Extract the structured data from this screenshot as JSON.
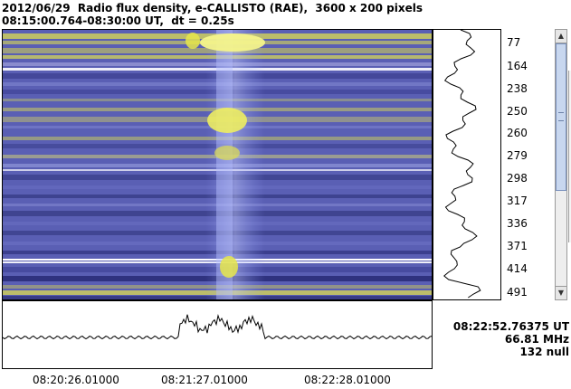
{
  "header": {
    "line1": "2012/06/29  Radio flux density, e-CALLISTO (RAE),  3600 x 200 pixels",
    "line2": "08:15:00.764-08:30:00 UT,  dt = 0.25s"
  },
  "frequency_axis": {
    "tick_labels": [
      "77",
      "164",
      "238",
      "250",
      "260",
      "279",
      "298",
      "317",
      "336",
      "371",
      "414",
      "491"
    ]
  },
  "time_axis": {
    "tick_labels": [
      "08:20:26.01000",
      "08:21:27.01000",
      "08:22:28.01000"
    ]
  },
  "readout": {
    "time": "08:22:52.76375 UT",
    "frequency": "66.81 MHz",
    "null_count": "132 null"
  },
  "colors": {
    "spectrogram_base": "#5a5fb4",
    "spectrogram_dark": "#1c1f68",
    "spectrogram_hot": "#e6e64a",
    "profile_line": "#000000",
    "scroll_thumb": "#c8d7ef"
  },
  "scrollbar": {
    "up_icon": "triangle-up",
    "down_icon": "triangle-down"
  }
}
